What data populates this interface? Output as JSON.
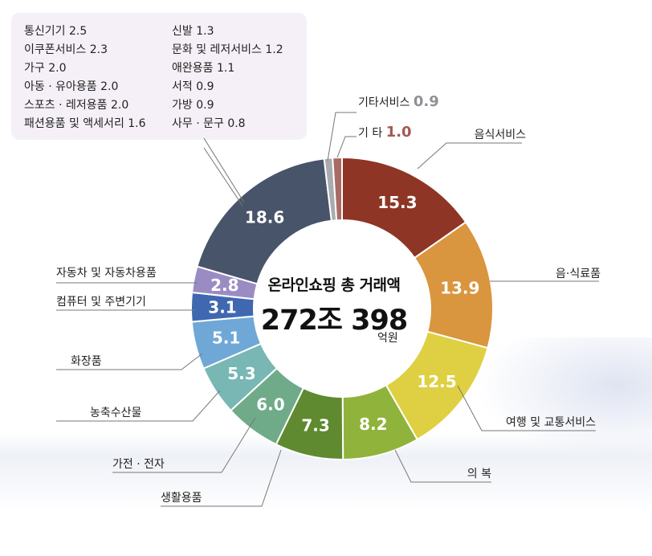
{
  "legend": [
    {
      "label": "통신기기 2.5"
    },
    {
      "label": "신발 1.3"
    },
    {
      "label": "이쿠폰서비스 2.3"
    },
    {
      "label": "문화 및 레저서비스 1.2"
    },
    {
      "label": "가구 2.0"
    },
    {
      "label": "애완용품 1.1"
    },
    {
      "label": "아동 · 유아용품 2.0"
    },
    {
      "label": "서적 0.9"
    },
    {
      "label": "스포츠 · 레저용품 2.0"
    },
    {
      "label": "가방 0.9"
    },
    {
      "label": "패션용품 및 액세서리 1.6"
    },
    {
      "label": "사무 · 문구 0.8"
    }
  ],
  "center": {
    "title": "온라인쇼핑 총 거래액",
    "value": "272조 398",
    "unit": "억원"
  },
  "chart_data": {
    "type": "pie",
    "donut": true,
    "slices": [
      {
        "label": "음식서비스",
        "value": 15.3,
        "color": "#8e3526"
      },
      {
        "label": "음·식료품",
        "value": 13.9,
        "color": "#d9963e"
      },
      {
        "label": "여행 및 교통서비스",
        "value": 12.5,
        "color": "#dfd043"
      },
      {
        "label": "의 복",
        "value": 8.2,
        "color": "#90b33c"
      },
      {
        "label": "",
        "value": 7.3,
        "color": "#5f8a2f"
      },
      {
        "label": "생활용품",
        "value": 6.0,
        "color": "#6fab88"
      },
      {
        "label": "가전 · 전자",
        "value": 5.3,
        "color": "#78b7b4"
      },
      {
        "label": "농축수산물",
        "value": 5.1,
        "color": "#6fa8d6"
      },
      {
        "label": "화장품",
        "value": 3.1,
        "color": "#3f68b0"
      },
      {
        "label": "컴퓨터 및 주변기기",
        "value": 2.8,
        "color": "#9a8cc3"
      },
      {
        "label": "자동차 및 자동차용품",
        "value": 18.6,
        "color": "#48546a"
      },
      {
        "label": "",
        "value": 0.9,
        "color": "#a9abae"
      },
      {
        "label": "",
        "value": 1.0,
        "color": "#a86a63"
      }
    ],
    "callouts": [
      {
        "label": "기타서비스",
        "value": "0.9"
      },
      {
        "label": "기 타",
        "value": "1.0"
      }
    ]
  }
}
